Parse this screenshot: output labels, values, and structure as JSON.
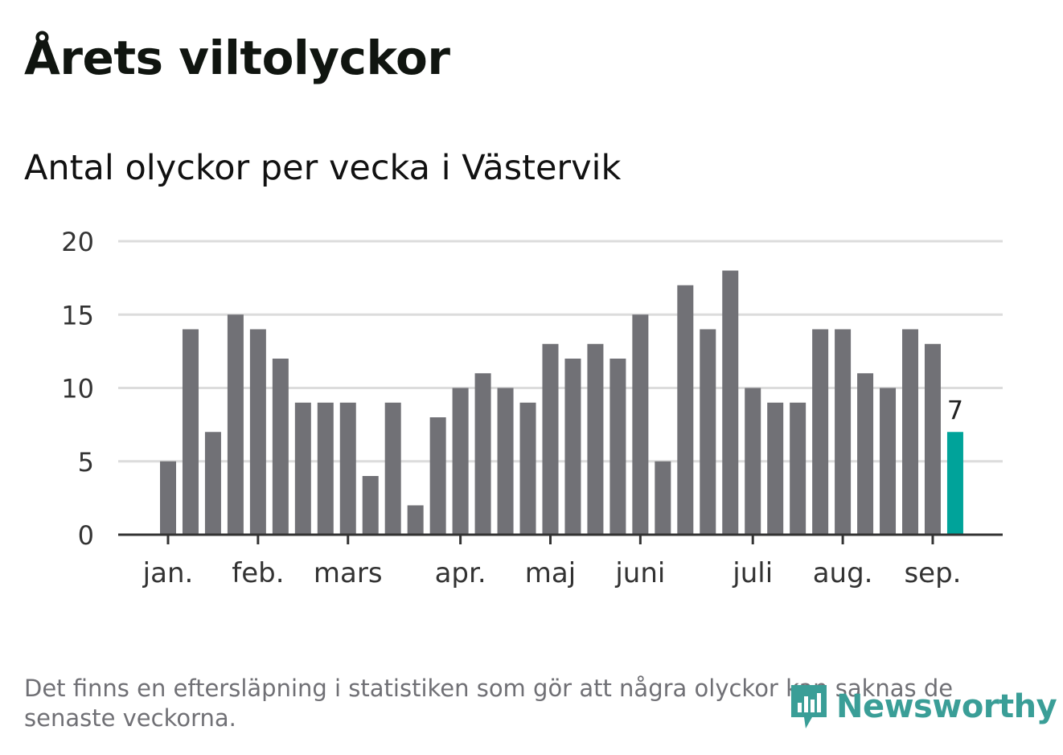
{
  "title": "Årets viltolyckor",
  "subtitle": "Antal olyckor per vecka i Västervik",
  "footnote": "Det finns en eftersläpning i statistiken som gör att några olyckor kan saknas de senaste veckorna.",
  "brand": "Newsworthy",
  "colors": {
    "bar": "#717176",
    "highlight": "#00a39a",
    "grid": "#dcdcdc",
    "axis": "#333333",
    "brand": "#3a9e97"
  },
  "chart_data": {
    "type": "bar",
    "ylim": [
      0,
      20
    ],
    "yticks": [
      0,
      5,
      10,
      15,
      20
    ],
    "grid": true,
    "values": [
      5,
      14,
      7,
      15,
      14,
      12,
      9,
      9,
      9,
      4,
      9,
      2,
      8,
      10,
      11,
      10,
      9,
      13,
      12,
      13,
      12,
      15,
      5,
      17,
      14,
      18,
      10,
      9,
      9,
      14,
      14,
      11,
      10,
      14,
      13,
      7
    ],
    "month_labels": [
      {
        "label": "jan.",
        "at": 0
      },
      {
        "label": "feb.",
        "at": 4
      },
      {
        "label": "mars",
        "at": 8
      },
      {
        "label": "apr.",
        "at": 13
      },
      {
        "label": "maj",
        "at": 17
      },
      {
        "label": "juni",
        "at": 21
      },
      {
        "label": "juli",
        "at": 26
      },
      {
        "label": "aug.",
        "at": 30
      },
      {
        "label": "sep.",
        "at": 34
      }
    ],
    "highlight_index": 35,
    "highlight_label": "7"
  }
}
